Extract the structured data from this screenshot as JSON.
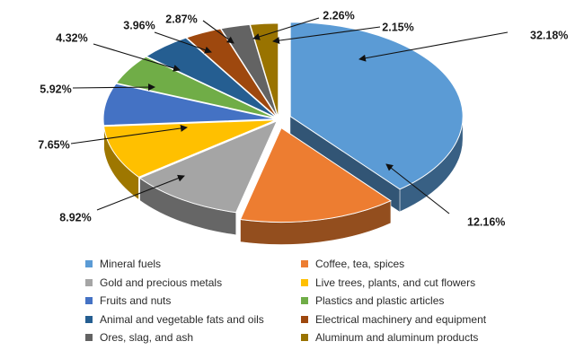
{
  "chart_data": {
    "type": "pie",
    "title": "",
    "legend_position": "bottom",
    "categories": [
      "Mineral fuels",
      "Coffee, tea, spices",
      "Gold and precious metals",
      "Live trees, plants, and cut flowers",
      "Fruits and nuts",
      "Plastics and plastic articles",
      "Animal and vegetable fats and oils",
      "Electrical machinery and equipment",
      "Ores, slag, and ash",
      "Aluminum and aluminum products"
    ],
    "values": [
      32.18,
      12.16,
      8.92,
      7.65,
      5.92,
      4.32,
      3.96,
      2.87,
      2.26,
      2.15
    ],
    "labels": [
      "32.18%",
      "12.16%",
      "8.92%",
      "7.65%",
      "5.92%",
      "4.32%",
      "3.96%",
      "2.87%",
      "2.26%",
      "2.15%"
    ],
    "colors": [
      "#5b9bd5",
      "#ed7d31",
      "#a5a5a5",
      "#ffc000",
      "#4472c4",
      "#70ad47",
      "#255e91",
      "#9e480e",
      "#636363",
      "#997300"
    ],
    "exploded": [
      "Mineral fuels",
      "Coffee, tea, spices"
    ],
    "style": "3d"
  }
}
